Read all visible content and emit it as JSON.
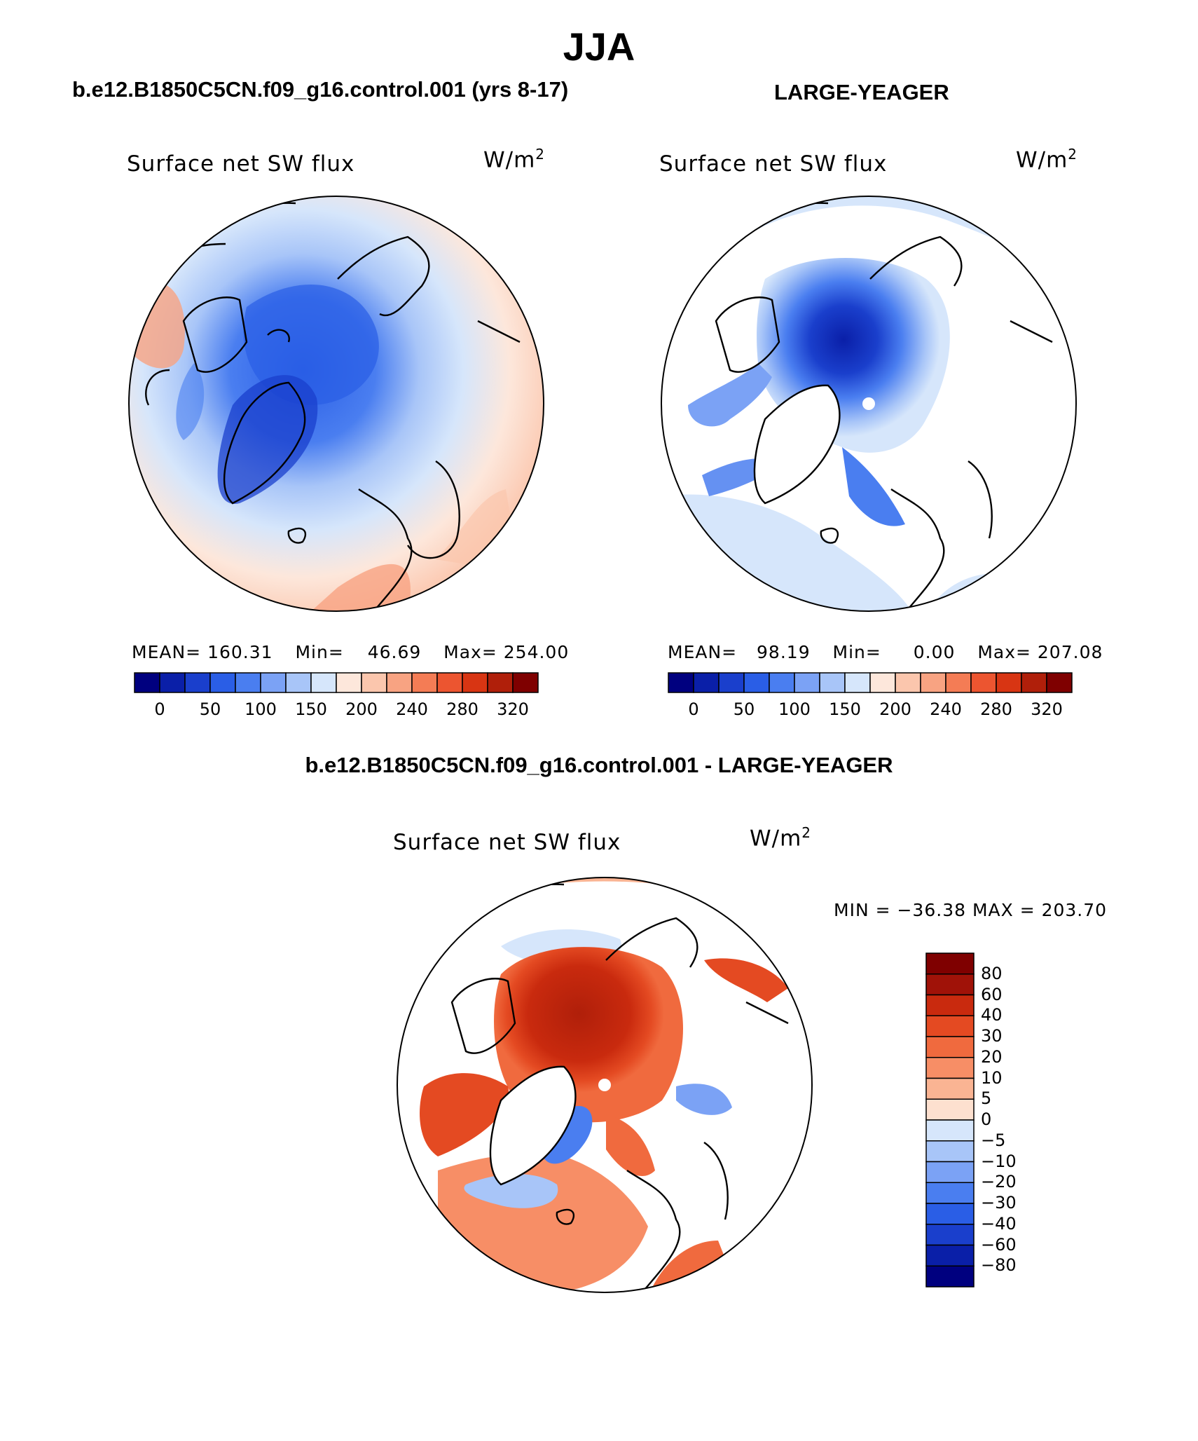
{
  "header": {
    "season": "JJA",
    "left_title": "b.e12.B1850C5CN.f09_g16.control.001 (yrs 8-17)",
    "right_title": "LARGE-YEAGER",
    "diff_title": "b.e12.B1850C5CN.f09_g16.control.001 - LARGE-YEAGER"
  },
  "panels": [
    {
      "variable": "Surface net SW flux",
      "units_base": "W/m",
      "units_exp": "2",
      "mean_label": "MEAN=",
      "mean": "160.31",
      "min_label": "Min=",
      "min": "46.69",
      "max_label": "Max=",
      "max": "254.00"
    },
    {
      "variable": "Surface net SW flux",
      "units_base": "W/m",
      "units_exp": "2",
      "mean_label": "MEAN=",
      "mean": "98.19",
      "min_label": "Min=",
      "min": "0.00",
      "max_label": "Max=",
      "max": "207.08"
    },
    {
      "variable": "Surface net SW flux",
      "units_base": "W/m",
      "units_exp": "2",
      "minmax": "MIN = −36.38 MAX = 203.70"
    }
  ],
  "colorbar_abs": {
    "labels": [
      "0",
      "50",
      "100",
      "150",
      "200",
      "240",
      "280",
      "320"
    ],
    "colors": [
      "#00007f",
      "#0a1fa8",
      "#1a3fcc",
      "#2a5ee6",
      "#4a7ef0",
      "#7ba2f5",
      "#a8c5f8",
      "#d6e6fb",
      "#fde7db",
      "#fbc6ad",
      "#f8a382",
      "#f47c55",
      "#ec5530",
      "#d83513",
      "#b01f0a",
      "#7f0000"
    ]
  },
  "colorbar_diff": {
    "labels": [
      "80",
      "60",
      "40",
      "30",
      "20",
      "10",
      "5",
      "0",
      "−5",
      "−10",
      "−20",
      "−30",
      "−40",
      "−60",
      "−80"
    ],
    "colors": [
      "#7f0000",
      "#a01208",
      "#c92a0e",
      "#e44a22",
      "#f06a3e",
      "#f78e66",
      "#fab493",
      "#fde0cf",
      "#d6e6fb",
      "#a8c5f8",
      "#7ba2f5",
      "#4a7ef0",
      "#2a5ee6",
      "#1a3fcc",
      "#0a1fa8",
      "#00007f"
    ]
  }
}
